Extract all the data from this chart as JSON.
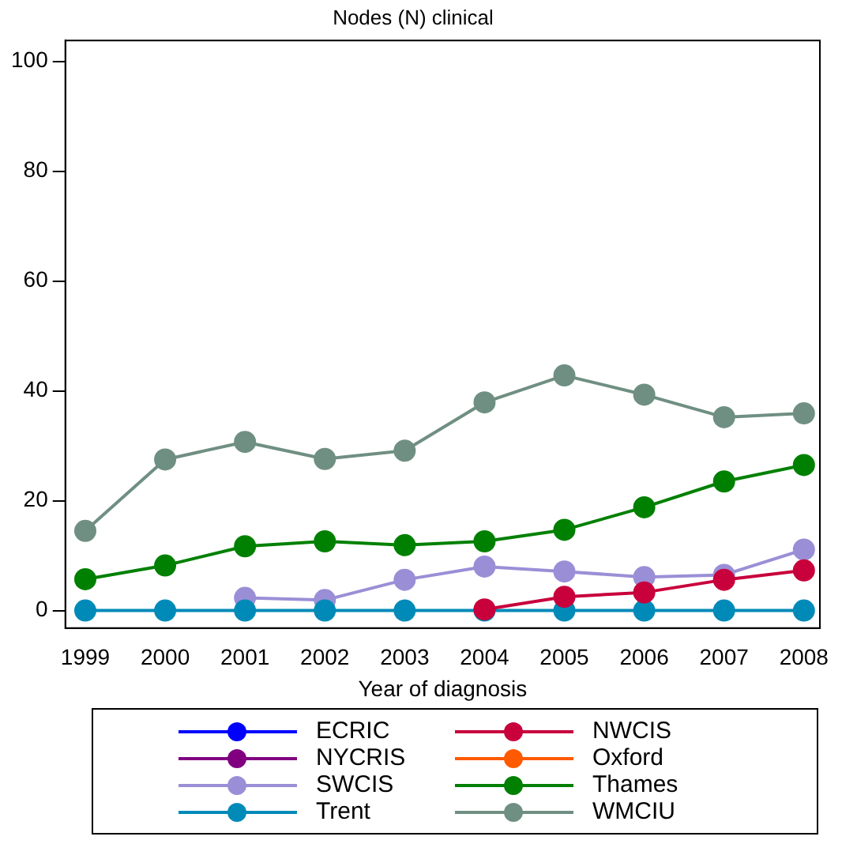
{
  "chart_data": {
    "type": "line",
    "title": "Nodes (N) clinical",
    "xlabel": "Year of diagnosis",
    "x": [
      1999,
      2000,
      2001,
      2002,
      2003,
      2004,
      2005,
      2006,
      2007,
      2008
    ],
    "xlim": [
      1998.75,
      2008.2
    ],
    "xticks": [
      1999,
      2000,
      2001,
      2002,
      2003,
      2004,
      2005,
      2006,
      2007,
      2008
    ],
    "ylim": [
      -3.2,
      103.8
    ],
    "yticks": [
      0,
      20,
      40,
      60,
      80,
      100
    ],
    "grid": false,
    "legend": "bottom",
    "marker": "circle",
    "line_style": "solid",
    "series": [
      {
        "name": "ECRIC",
        "color": "#0000ff",
        "values": [
          null,
          null,
          null,
          null,
          null,
          null,
          null,
          null,
          null,
          null
        ]
      },
      {
        "name": "NYCRIS",
        "color": "#800080",
        "values": [
          null,
          null,
          null,
          null,
          null,
          null,
          null,
          null,
          null,
          null
        ]
      },
      {
        "name": "SWCIS",
        "color": "#9a8fd6",
        "values": [
          null,
          null,
          2.3,
          1.9,
          5.6,
          8.0,
          7.1,
          6.1,
          6.5,
          11.1
        ]
      },
      {
        "name": "Trent",
        "color": "#008ab8",
        "values": [
          0,
          0,
          0,
          0,
          0,
          0,
          0,
          0,
          0,
          0
        ]
      },
      {
        "name": "NWCIS",
        "color": "#c8003c",
        "values": [
          null,
          null,
          null,
          null,
          null,
          0.2,
          2.5,
          3.3,
          5.6,
          7.3
        ]
      },
      {
        "name": "Oxford",
        "color": "#ff5a00",
        "values": [
          null,
          null,
          null,
          null,
          null,
          null,
          null,
          null,
          null,
          null
        ]
      },
      {
        "name": "Thames",
        "color": "#008000",
        "values": [
          5.7,
          8.2,
          11.7,
          12.6,
          11.9,
          12.6,
          14.7,
          18.8,
          23.5,
          26.5
        ]
      },
      {
        "name": "WMCIU",
        "color": "#6f8f82",
        "values": [
          14.5,
          27.5,
          30.7,
          27.6,
          29.1,
          37.9,
          42.8,
          39.3,
          35.2,
          35.9
        ]
      }
    ]
  }
}
